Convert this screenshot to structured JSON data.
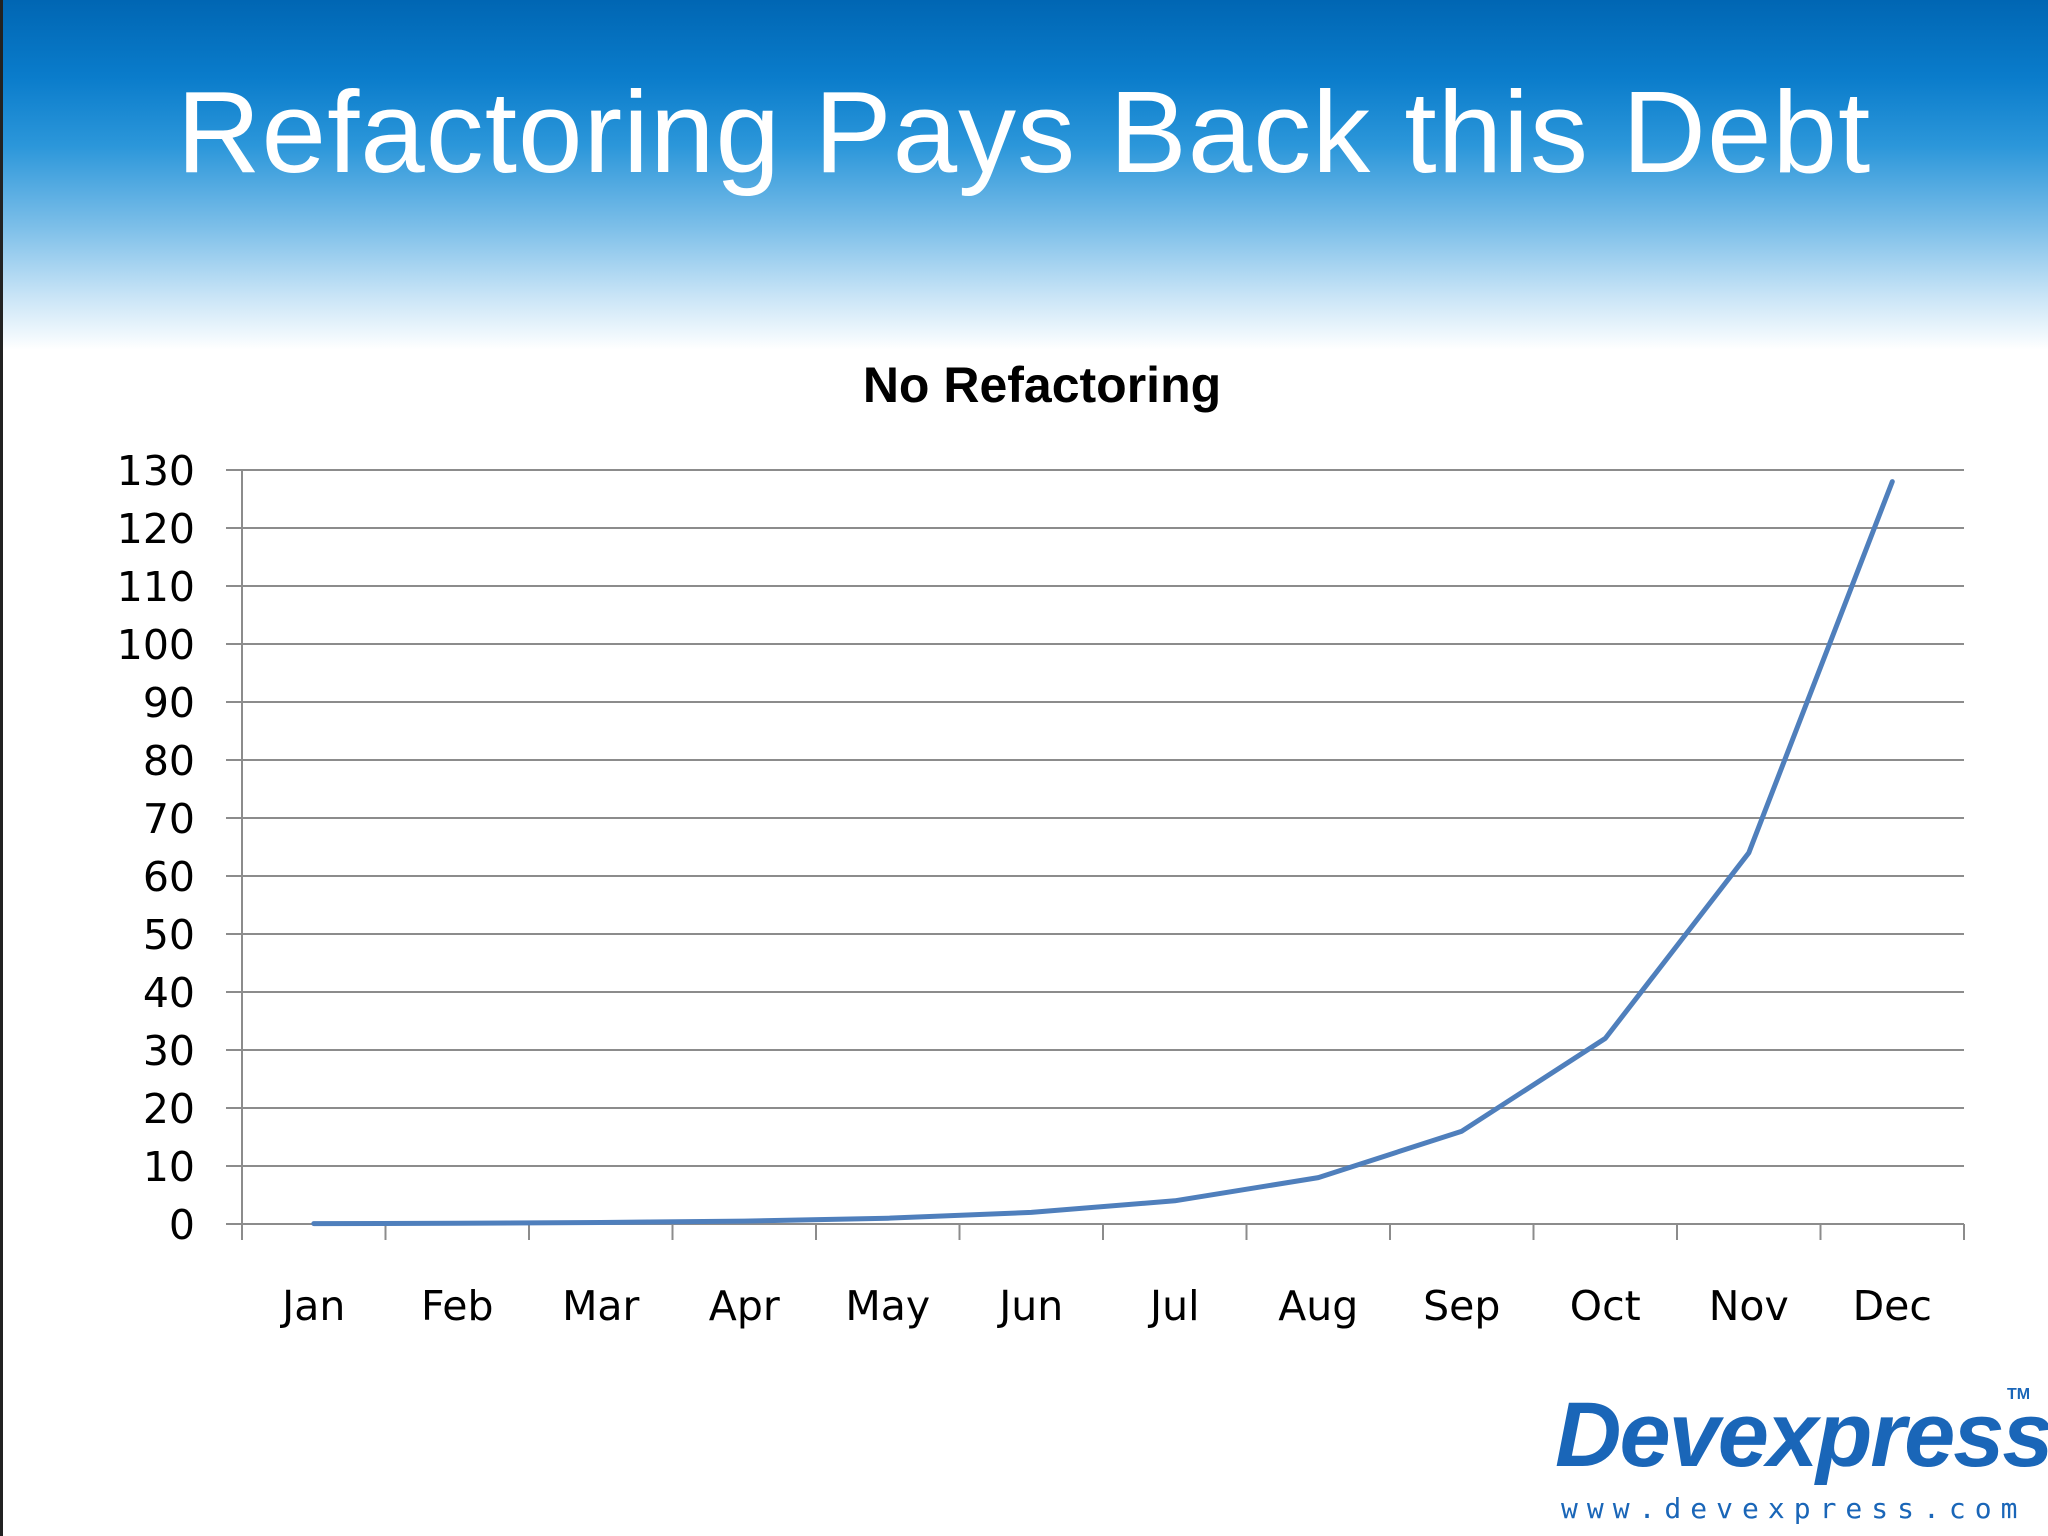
{
  "slide": {
    "title": "Refactoring Pays Back this Debt"
  },
  "logo": {
    "name": "Devexpress",
    "tm": "TM",
    "url": "www.devexpress.com"
  },
  "colors": {
    "series_line": "#4f7fbc",
    "gridline": "#8c8c8c",
    "header_blue": "#0066b3"
  },
  "chart_data": {
    "type": "line",
    "title": "No Refactoring",
    "xlabel": "",
    "ylabel": "",
    "categories": [
      "Jan",
      "Feb",
      "Mar",
      "Apr",
      "May",
      "Jun",
      "Jul",
      "Aug",
      "Sep",
      "Oct",
      "Nov",
      "Dec"
    ],
    "series": [
      {
        "values": [
          0.0625,
          0.125,
          0.25,
          0.5,
          1,
          2,
          4,
          8,
          16,
          32,
          64,
          128
        ]
      }
    ],
    "ylim": [
      0,
      130
    ],
    "yticks": [
      0,
      10,
      20,
      30,
      40,
      50,
      60,
      70,
      80,
      90,
      100,
      110,
      120,
      130
    ],
    "grid": true,
    "legend": "none"
  }
}
